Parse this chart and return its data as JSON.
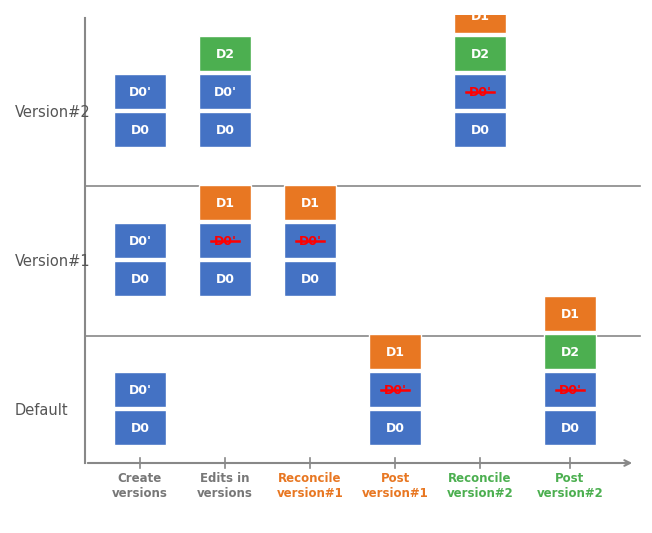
{
  "row_labels": [
    "Version#2",
    "Version#1",
    "Default"
  ],
  "col_labels": [
    "Create\nversions",
    "Edits in\nversions",
    "Reconcile\nversion#1",
    "Post\nversion#1",
    "Reconcile\nversion#2",
    "Post\nversion#2"
  ],
  "col_label_colors": [
    "#777777",
    "#777777",
    "#E87722",
    "#E87722",
    "#4CAF50",
    "#4CAF50"
  ],
  "blue": "#4472C4",
  "orange": "#E87722",
  "green": "#4CAF50",
  "stacks": [
    {
      "row": 0,
      "col": 0,
      "boxes": [
        {
          "label": "D0'",
          "color": "#4472C4",
          "strike": false
        },
        {
          "label": "D0",
          "color": "#4472C4",
          "strike": false
        }
      ]
    },
    {
      "row": 0,
      "col": 1,
      "boxes": [
        {
          "label": "D2",
          "color": "#4CAF50",
          "strike": false
        },
        {
          "label": "D0'",
          "color": "#4472C4",
          "strike": false
        },
        {
          "label": "D0",
          "color": "#4472C4",
          "strike": false
        }
      ]
    },
    {
      "row": 0,
      "col": 4,
      "boxes": [
        {
          "label": "D1",
          "color": "#E87722",
          "strike": false
        },
        {
          "label": "D2",
          "color": "#4CAF50",
          "strike": false
        },
        {
          "label": "D0'",
          "color": "#4472C4",
          "strike": true
        },
        {
          "label": "D0",
          "color": "#4472C4",
          "strike": false
        }
      ]
    },
    {
      "row": 1,
      "col": 0,
      "boxes": [
        {
          "label": "D0'",
          "color": "#4472C4",
          "strike": false
        },
        {
          "label": "D0",
          "color": "#4472C4",
          "strike": false
        }
      ]
    },
    {
      "row": 1,
      "col": 1,
      "boxes": [
        {
          "label": "D1",
          "color": "#E87722",
          "strike": false
        },
        {
          "label": "D0'",
          "color": "#4472C4",
          "strike": true
        },
        {
          "label": "D0",
          "color": "#4472C4",
          "strike": false
        }
      ]
    },
    {
      "row": 1,
      "col": 2,
      "boxes": [
        {
          "label": "D1",
          "color": "#E87722",
          "strike": false
        },
        {
          "label": "D0'",
          "color": "#4472C4",
          "strike": true
        },
        {
          "label": "D0",
          "color": "#4472C4",
          "strike": false
        }
      ]
    },
    {
      "row": 2,
      "col": 0,
      "boxes": [
        {
          "label": "D0'",
          "color": "#4472C4",
          "strike": false
        },
        {
          "label": "D0",
          "color": "#4472C4",
          "strike": false
        }
      ]
    },
    {
      "row": 2,
      "col": 3,
      "boxes": [
        {
          "label": "D1",
          "color": "#E87722",
          "strike": false
        },
        {
          "label": "D0'",
          "color": "#4472C4",
          "strike": true
        },
        {
          "label": "D0",
          "color": "#4472C4",
          "strike": false
        }
      ]
    },
    {
      "row": 2,
      "col": 5,
      "boxes": [
        {
          "label": "D1",
          "color": "#E87722",
          "strike": false
        },
        {
          "label": "D2",
          "color": "#4CAF50",
          "strike": false
        },
        {
          "label": "D0'",
          "color": "#4472C4",
          "strike": true
        },
        {
          "label": "D0",
          "color": "#4472C4",
          "strike": false
        }
      ]
    }
  ]
}
